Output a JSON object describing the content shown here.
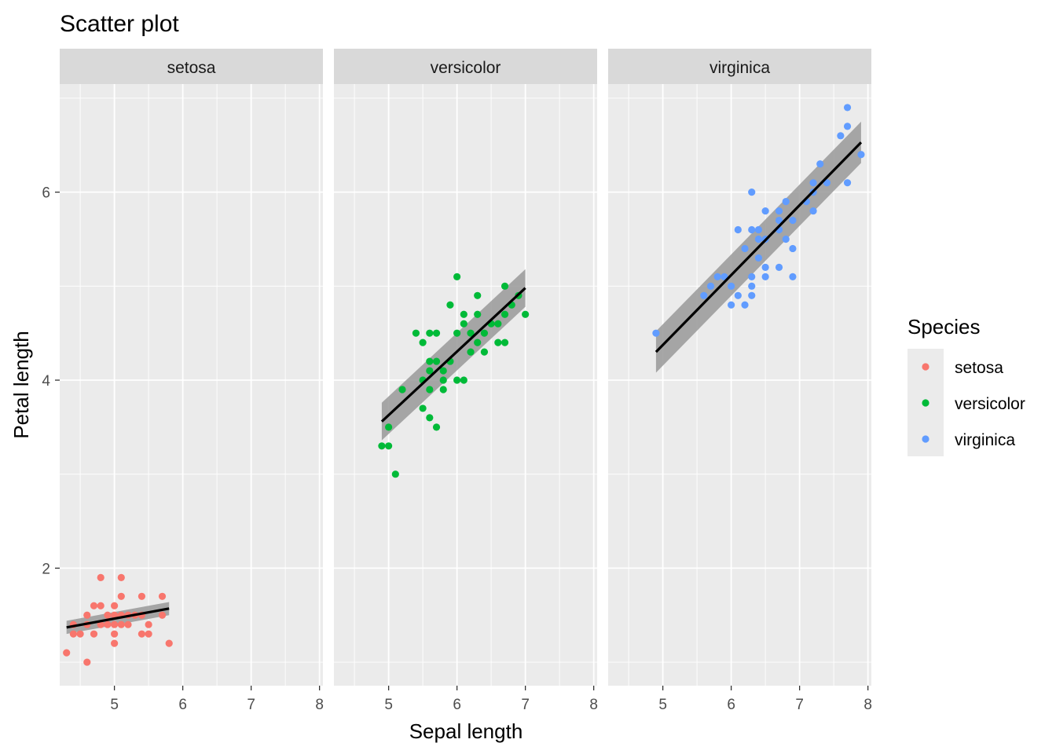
{
  "chart_data": {
    "type": "scatter",
    "title": "Scatter plot",
    "xlabel": "Sepal length",
    "ylabel": "Petal length",
    "facet_by": "Species",
    "xlim": [
      4.2,
      8.05
    ],
    "ylim": [
      0.75,
      7.15
    ],
    "x_ticks": [
      5,
      6,
      7,
      8
    ],
    "y_ticks": [
      2,
      4,
      6
    ],
    "grid": true,
    "smooth": "linear fit with confidence band",
    "legend": {
      "title": "Species",
      "position": "right",
      "entries": [
        {
          "label": "setosa",
          "color": "#F8766D"
        },
        {
          "label": "versicolor",
          "color": "#00BA38"
        },
        {
          "label": "virginica",
          "color": "#619CFF"
        }
      ]
    },
    "panels": [
      {
        "name": "setosa",
        "color": "#F8766D",
        "fit": {
          "x": [
            4.3,
            5.8
          ],
          "y": [
            1.37,
            1.57
          ],
          "se_halfwidth": 0.07
        },
        "points": [
          [
            4.3,
            1.1
          ],
          [
            4.4,
            1.3
          ],
          [
            4.5,
            1.3
          ],
          [
            4.4,
            1.4
          ],
          [
            4.6,
            1.0
          ],
          [
            4.6,
            1.4
          ],
          [
            4.6,
            1.5
          ],
          [
            4.7,
            1.3
          ],
          [
            4.7,
            1.6
          ],
          [
            4.8,
            1.4
          ],
          [
            4.8,
            1.6
          ],
          [
            4.8,
            1.9
          ],
          [
            4.9,
            1.4
          ],
          [
            4.9,
            1.5
          ],
          [
            5.0,
            1.2
          ],
          [
            5.0,
            1.3
          ],
          [
            5.0,
            1.4
          ],
          [
            5.0,
            1.5
          ],
          [
            5.0,
            1.6
          ],
          [
            5.1,
            1.4
          ],
          [
            5.1,
            1.5
          ],
          [
            5.1,
            1.7
          ],
          [
            5.1,
            1.9
          ],
          [
            5.2,
            1.4
          ],
          [
            5.2,
            1.5
          ],
          [
            5.3,
            1.5
          ],
          [
            5.4,
            1.3
          ],
          [
            5.4,
            1.5
          ],
          [
            5.4,
            1.7
          ],
          [
            5.5,
            1.3
          ],
          [
            5.5,
            1.4
          ],
          [
            5.7,
            1.5
          ],
          [
            5.7,
            1.7
          ],
          [
            5.8,
            1.2
          ]
        ]
      },
      {
        "name": "versicolor",
        "color": "#00BA38",
        "fit": {
          "x": [
            4.9,
            7.0
          ],
          "y": [
            3.56,
            4.98
          ],
          "se_halfwidth": 0.2
        },
        "points": [
          [
            4.9,
            3.3
          ],
          [
            5.0,
            3.3
          ],
          [
            5.0,
            3.5
          ],
          [
            5.1,
            3.0
          ],
          [
            5.2,
            3.9
          ],
          [
            5.4,
            4.5
          ],
          [
            5.5,
            3.7
          ],
          [
            5.5,
            4.0
          ],
          [
            5.5,
            4.4
          ],
          [
            5.6,
            3.6
          ],
          [
            5.6,
            3.9
          ],
          [
            5.6,
            4.1
          ],
          [
            5.6,
            4.2
          ],
          [
            5.6,
            4.5
          ],
          [
            5.7,
            3.5
          ],
          [
            5.7,
            4.2
          ],
          [
            5.7,
            4.5
          ],
          [
            5.8,
            3.9
          ],
          [
            5.8,
            4.0
          ],
          [
            5.8,
            4.1
          ],
          [
            5.9,
            4.2
          ],
          [
            5.9,
            4.8
          ],
          [
            6.0,
            4.0
          ],
          [
            6.0,
            4.5
          ],
          [
            6.0,
            5.1
          ],
          [
            6.1,
            4.0
          ],
          [
            6.1,
            4.6
          ],
          [
            6.1,
            4.7
          ],
          [
            6.2,
            4.3
          ],
          [
            6.2,
            4.5
          ],
          [
            6.3,
            4.4
          ],
          [
            6.3,
            4.7
          ],
          [
            6.3,
            4.9
          ],
          [
            6.4,
            4.3
          ],
          [
            6.4,
            4.5
          ],
          [
            6.5,
            4.6
          ],
          [
            6.6,
            4.4
          ],
          [
            6.6,
            4.6
          ],
          [
            6.7,
            4.4
          ],
          [
            6.7,
            4.7
          ],
          [
            6.7,
            5.0
          ],
          [
            6.8,
            4.8
          ],
          [
            6.9,
            4.9
          ],
          [
            7.0,
            4.7
          ]
        ]
      },
      {
        "name": "virginica",
        "color": "#619CFF",
        "fit": {
          "x": [
            4.9,
            7.9
          ],
          "y": [
            4.3,
            6.53
          ],
          "se_halfwidth": 0.22
        },
        "points": [
          [
            4.9,
            4.5
          ],
          [
            5.6,
            4.9
          ],
          [
            5.7,
            5.0
          ],
          [
            5.8,
            5.1
          ],
          [
            5.9,
            5.1
          ],
          [
            6.0,
            4.8
          ],
          [
            6.0,
            5.0
          ],
          [
            6.1,
            4.9
          ],
          [
            6.1,
            5.6
          ],
          [
            6.2,
            4.8
          ],
          [
            6.2,
            5.4
          ],
          [
            6.3,
            4.9
          ],
          [
            6.3,
            5.0
          ],
          [
            6.3,
            5.1
          ],
          [
            6.3,
            5.6
          ],
          [
            6.3,
            6.0
          ],
          [
            6.4,
            5.3
          ],
          [
            6.4,
            5.5
          ],
          [
            6.4,
            5.6
          ],
          [
            6.5,
            5.1
          ],
          [
            6.5,
            5.2
          ],
          [
            6.5,
            5.5
          ],
          [
            6.5,
            5.8
          ],
          [
            6.7,
            5.2
          ],
          [
            6.7,
            5.6
          ],
          [
            6.7,
            5.7
          ],
          [
            6.7,
            5.8
          ],
          [
            6.8,
            5.5
          ],
          [
            6.8,
            5.9
          ],
          [
            6.9,
            5.1
          ],
          [
            6.9,
            5.4
          ],
          [
            6.9,
            5.7
          ],
          [
            7.1,
            5.9
          ],
          [
            7.2,
            5.8
          ],
          [
            7.2,
            6.0
          ],
          [
            7.2,
            6.1
          ],
          [
            7.3,
            6.3
          ],
          [
            7.4,
            6.1
          ],
          [
            7.6,
            6.6
          ],
          [
            7.7,
            6.1
          ],
          [
            7.7,
            6.7
          ],
          [
            7.7,
            6.9
          ],
          [
            7.9,
            6.4
          ]
        ]
      }
    ]
  }
}
